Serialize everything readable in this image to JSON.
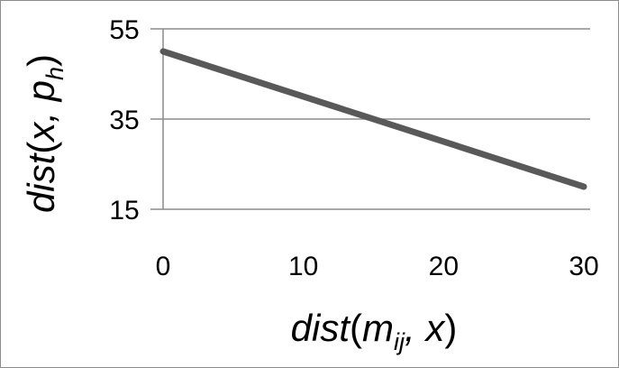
{
  "chart_data": {
    "type": "line",
    "title": "",
    "x": [
      0,
      30
    ],
    "series": [
      {
        "values": [
          50,
          20
        ],
        "color": "#595959"
      }
    ],
    "xlim": [
      0,
      30
    ],
    "ylim": [
      15,
      55
    ],
    "xticks": [
      0,
      10,
      20,
      30
    ],
    "yticks": [
      15,
      35,
      55
    ],
    "xtick_labels": [
      "0",
      "10",
      "20",
      "30"
    ],
    "ytick_labels": [
      "15",
      "35",
      "55"
    ],
    "xlabel": {
      "main": "dist",
      "open": "(",
      "var": "m",
      "sub": "ij",
      "rest": ", x",
      "close": ")"
    },
    "ylabel": {
      "main": "dist",
      "open": "(",
      "var": "x",
      "sep": ", ",
      "var2": "p",
      "sub": "h",
      "close": ")"
    },
    "grid": true,
    "legend": "none"
  }
}
